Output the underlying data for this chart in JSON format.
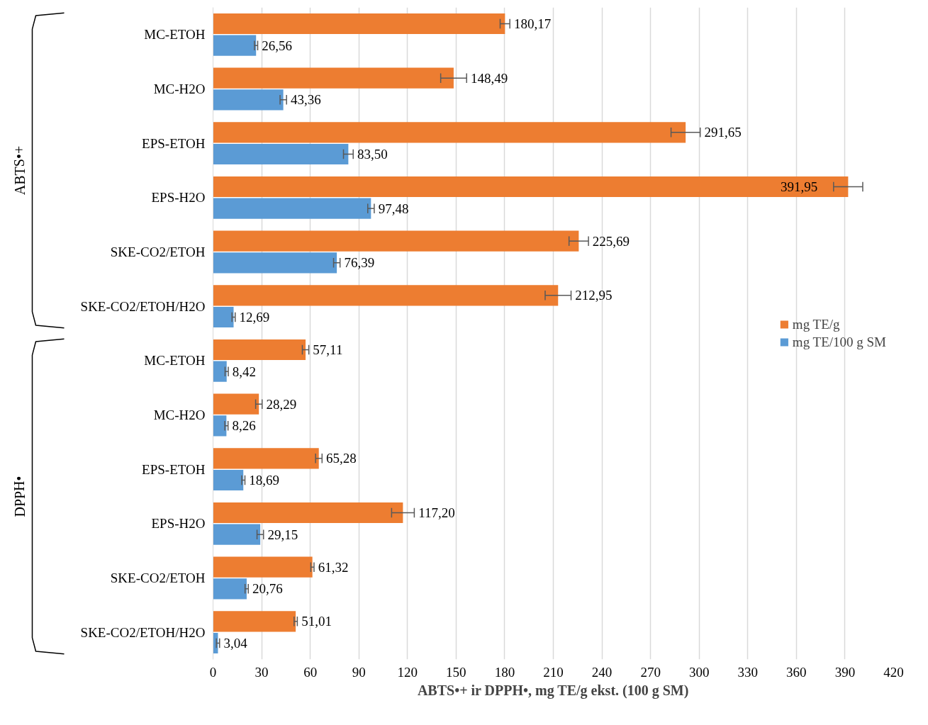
{
  "chart_data": {
    "type": "bar",
    "orientation": "horizontal",
    "categories": [
      "MC-ETOH",
      "MC-H2O",
      "EPS-ETOH",
      "EPS-H2O",
      "SKE-CO2/ETOH",
      "SKE-CO2/ETOH/H2O",
      "MC-ETOH",
      "MC-H2O",
      "EPS-ETOH",
      "EPS-H2O",
      "SKE-CO2/ETOH",
      "SKE-CO2/ETOH/H2O"
    ],
    "series": [
      {
        "name": "mg TE/g",
        "color": "#ed7d31",
        "values": [
          180.17,
          148.49,
          291.65,
          391.95,
          225.69,
          212.95,
          57.11,
          28.29,
          65.28,
          117.2,
          61.32,
          51.01
        ],
        "errors": [
          3,
          8,
          9,
          9,
          6,
          8,
          2,
          2,
          2,
          7,
          1,
          1
        ],
        "value_labels": [
          "180,17",
          "148,49",
          "291,65",
          "391,95",
          "225,69",
          "212,95",
          "57,11",
          "28,29",
          "65,28",
          "117,20",
          "61,32",
          "51,01"
        ]
      },
      {
        "name": "mg TE/100 g SM",
        "color": "#5b9bd5",
        "values": [
          26.56,
          43.36,
          83.5,
          97.48,
          76.39,
          12.69,
          8.42,
          8.26,
          18.69,
          29.15,
          20.76,
          3.04
        ],
        "errors": [
          1,
          2,
          3,
          2,
          2,
          1,
          1,
          1,
          1,
          2,
          1,
          1
        ],
        "value_labels": [
          "26,56",
          "43,36",
          "83,50",
          "97,48",
          "76,39",
          "12,69",
          "8,42",
          "8,26",
          "18,69",
          "29,15",
          "20,76",
          "3,04"
        ]
      }
    ],
    "xlim": [
      0,
      420
    ],
    "xticks": [
      0,
      30,
      60,
      90,
      120,
      150,
      180,
      210,
      240,
      270,
      300,
      330,
      360,
      390,
      420
    ],
    "xlabel": "ABTS•+ ir DPPH•, mg TE/g ekst. (100 g SM)",
    "annotations": [
      "ABTS•+",
      "DPPH•"
    ],
    "grid": "x",
    "legend": "right"
  }
}
